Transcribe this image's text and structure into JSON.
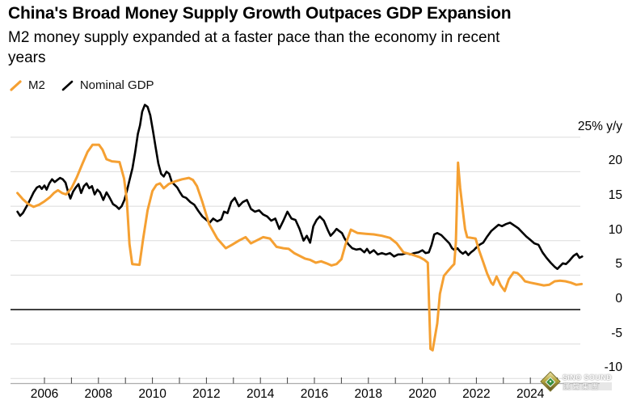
{
  "chart_data": {
    "type": "line",
    "title": "China's Broad Money Supply Growth Outpaces GDP Expansion",
    "subtitle": "M2 money supply expanded at a faster pace than the economy in recent years",
    "legend_position": "top-left",
    "grid": true,
    "x_axis": {
      "range": [
        2005.0,
        2026.3
      ],
      "tick_years": [
        2006,
        2007,
        2008,
        2009,
        2010,
        2011,
        2012,
        2013,
        2014,
        2015,
        2016,
        2017,
        2018,
        2019,
        2020,
        2021,
        2022,
        2023,
        2024,
        2025
      ],
      "label_years": [
        "2006",
        "2008",
        "2010",
        "2012",
        "2014",
        "2016",
        "2018",
        "2020",
        "2022",
        "2024"
      ]
    },
    "y_axis": {
      "unit": "% y/y",
      "range": [
        -10,
        30
      ],
      "ticks": [
        {
          "v": 25,
          "label": "25% y/y"
        },
        {
          "v": 20,
          "label": "20"
        },
        {
          "v": 15,
          "label": "15"
        },
        {
          "v": 10,
          "label": "10"
        },
        {
          "v": 5,
          "label": "5"
        },
        {
          "v": 0,
          "label": "0"
        },
        {
          "v": -5,
          "label": "-5"
        },
        {
          "v": -10,
          "label": "-10"
        }
      ]
    },
    "series": [
      {
        "name": "M2",
        "color": "#F5A032",
        "points": [
          [
            2005.0,
            16.9
          ],
          [
            2005.2,
            16.0
          ],
          [
            2005.4,
            15.3
          ],
          [
            2005.6,
            14.9
          ],
          [
            2005.8,
            15.2
          ],
          [
            2006.0,
            15.7
          ],
          [
            2006.2,
            16.3
          ],
          [
            2006.35,
            16.9
          ],
          [
            2006.5,
            17.3
          ],
          [
            2006.65,
            16.9
          ],
          [
            2006.8,
            16.7
          ],
          [
            2007.0,
            17.6
          ],
          [
            2007.2,
            19.2
          ],
          [
            2007.4,
            21.1
          ],
          [
            2007.6,
            22.9
          ],
          [
            2007.78,
            23.9
          ],
          [
            2008.02,
            23.9
          ],
          [
            2008.15,
            23.2
          ],
          [
            2008.3,
            21.8
          ],
          [
            2008.5,
            21.5
          ],
          [
            2008.78,
            21.4
          ],
          [
            2008.95,
            19.0
          ],
          [
            2009.05,
            15.9
          ],
          [
            2009.15,
            9.5
          ],
          [
            2009.25,
            6.6
          ],
          [
            2009.52,
            6.5
          ],
          [
            2009.65,
            10.1
          ],
          [
            2009.82,
            14.4
          ],
          [
            2010.0,
            17.2
          ],
          [
            2010.15,
            18.1
          ],
          [
            2010.28,
            18.3
          ],
          [
            2010.42,
            17.6
          ],
          [
            2010.6,
            18.2
          ],
          [
            2010.85,
            18.6
          ],
          [
            2011.1,
            18.9
          ],
          [
            2011.35,
            19.1
          ],
          [
            2011.5,
            18.8
          ],
          [
            2011.65,
            17.9
          ],
          [
            2011.85,
            15.6
          ],
          [
            2012.1,
            12.4
          ],
          [
            2012.4,
            10.3
          ],
          [
            2012.72,
            8.9
          ],
          [
            2012.95,
            9.4
          ],
          [
            2013.2,
            10.0
          ],
          [
            2013.45,
            10.5
          ],
          [
            2013.65,
            9.6
          ],
          [
            2013.9,
            10.1
          ],
          [
            2014.1,
            10.5
          ],
          [
            2014.35,
            10.3
          ],
          [
            2014.6,
            9.1
          ],
          [
            2014.85,
            8.9
          ],
          [
            2015.05,
            8.8
          ],
          [
            2015.25,
            8.2
          ],
          [
            2015.45,
            7.8
          ],
          [
            2015.65,
            7.4
          ],
          [
            2015.85,
            7.2
          ],
          [
            2016.05,
            6.8
          ],
          [
            2016.25,
            7.0
          ],
          [
            2016.45,
            6.7
          ],
          [
            2016.63,
            6.4
          ],
          [
            2016.82,
            6.6
          ],
          [
            2017.0,
            7.3
          ],
          [
            2017.15,
            9.4
          ],
          [
            2017.35,
            11.6
          ],
          [
            2017.6,
            11.1
          ],
          [
            2017.9,
            11.0
          ],
          [
            2018.2,
            10.9
          ],
          [
            2018.5,
            10.7
          ],
          [
            2018.8,
            10.4
          ],
          [
            2019.05,
            9.6
          ],
          [
            2019.3,
            8.3
          ],
          [
            2019.6,
            8.0
          ],
          [
            2019.9,
            7.6
          ],
          [
            2020.08,
            7.2
          ],
          [
            2020.2,
            6.8
          ],
          [
            2020.3,
            -5.7
          ],
          [
            2020.38,
            -5.9
          ],
          [
            2020.55,
            -2.0
          ],
          [
            2020.65,
            2.3
          ],
          [
            2020.8,
            4.9
          ],
          [
            2020.95,
            5.6
          ],
          [
            2021.08,
            6.2
          ],
          [
            2021.18,
            6.6
          ],
          [
            2021.24,
            9.7
          ],
          [
            2021.32,
            21.3
          ],
          [
            2021.4,
            17.6
          ],
          [
            2021.46,
            15.6
          ],
          [
            2021.52,
            13.6
          ],
          [
            2021.58,
            11.7
          ],
          [
            2021.66,
            10.5
          ],
          [
            2021.82,
            10.4
          ],
          [
            2021.97,
            10.3
          ],
          [
            2022.1,
            8.6
          ],
          [
            2022.25,
            6.9
          ],
          [
            2022.4,
            5.2
          ],
          [
            2022.55,
            3.9
          ],
          [
            2022.62,
            3.6
          ],
          [
            2022.75,
            4.8
          ],
          [
            2022.9,
            3.5
          ],
          [
            2023.05,
            2.7
          ],
          [
            2023.2,
            4.4
          ],
          [
            2023.38,
            5.4
          ],
          [
            2023.52,
            5.3
          ],
          [
            2023.66,
            4.8
          ],
          [
            2023.8,
            4.1
          ],
          [
            2024.0,
            3.9
          ],
          [
            2024.25,
            3.7
          ],
          [
            2024.5,
            3.5
          ],
          [
            2024.7,
            3.6
          ],
          [
            2024.9,
            4.1
          ],
          [
            2025.1,
            4.2
          ],
          [
            2025.3,
            4.1
          ],
          [
            2025.5,
            3.9
          ],
          [
            2025.7,
            3.6
          ],
          [
            2025.9,
            3.7
          ]
        ]
      },
      {
        "name": "Nominal GDP",
        "color": "#000000",
        "points": [
          [
            2005.0,
            14.2
          ],
          [
            2005.1,
            13.6
          ],
          [
            2005.2,
            14.0
          ],
          [
            2005.3,
            14.7
          ],
          [
            2005.4,
            15.4
          ],
          [
            2005.5,
            16.2
          ],
          [
            2005.6,
            17.0
          ],
          [
            2005.72,
            17.7
          ],
          [
            2005.82,
            17.9
          ],
          [
            2005.9,
            17.5
          ],
          [
            2006.0,
            18.0
          ],
          [
            2006.08,
            17.4
          ],
          [
            2006.18,
            18.3
          ],
          [
            2006.28,
            18.9
          ],
          [
            2006.38,
            18.5
          ],
          [
            2006.48,
            18.8
          ],
          [
            2006.58,
            19.1
          ],
          [
            2006.68,
            18.9
          ],
          [
            2006.78,
            18.4
          ],
          [
            2006.88,
            17.0
          ],
          [
            2006.96,
            16.1
          ],
          [
            2007.06,
            17.1
          ],
          [
            2007.16,
            17.7
          ],
          [
            2007.26,
            18.2
          ],
          [
            2007.36,
            16.9
          ],
          [
            2007.46,
            17.9
          ],
          [
            2007.56,
            18.3
          ],
          [
            2007.66,
            17.6
          ],
          [
            2007.76,
            17.9
          ],
          [
            2007.86,
            16.7
          ],
          [
            2007.96,
            17.4
          ],
          [
            2008.06,
            17.0
          ],
          [
            2008.18,
            15.9
          ],
          [
            2008.3,
            17.0
          ],
          [
            2008.42,
            16.2
          ],
          [
            2008.54,
            15.3
          ],
          [
            2008.66,
            15.0
          ],
          [
            2008.76,
            14.6
          ],
          [
            2008.86,
            15.0
          ],
          [
            2008.96,
            15.9
          ],
          [
            2009.06,
            17.3
          ],
          [
            2009.16,
            18.9
          ],
          [
            2009.26,
            20.5
          ],
          [
            2009.36,
            22.8
          ],
          [
            2009.46,
            25.5
          ],
          [
            2009.54,
            26.7
          ],
          [
            2009.62,
            28.7
          ],
          [
            2009.72,
            29.7
          ],
          [
            2009.82,
            29.4
          ],
          [
            2009.92,
            28.2
          ],
          [
            2010.02,
            25.9
          ],
          [
            2010.12,
            23.5
          ],
          [
            2010.22,
            21.2
          ],
          [
            2010.32,
            19.7
          ],
          [
            2010.42,
            19.3
          ],
          [
            2010.52,
            20.0
          ],
          [
            2010.62,
            19.7
          ],
          [
            2010.72,
            18.5
          ],
          [
            2010.82,
            18.1
          ],
          [
            2010.92,
            17.7
          ],
          [
            2011.02,
            17.0
          ],
          [
            2011.12,
            16.4
          ],
          [
            2011.25,
            16.2
          ],
          [
            2011.4,
            15.6
          ],
          [
            2011.55,
            15.2
          ],
          [
            2011.7,
            14.3
          ],
          [
            2011.85,
            13.5
          ],
          [
            2012.0,
            13.0
          ],
          [
            2012.12,
            12.6
          ],
          [
            2012.25,
            13.2
          ],
          [
            2012.4,
            12.8
          ],
          [
            2012.55,
            13.1
          ],
          [
            2012.65,
            14.2
          ],
          [
            2012.78,
            14.0
          ],
          [
            2012.92,
            15.6
          ],
          [
            2013.05,
            16.2
          ],
          [
            2013.2,
            15.0
          ],
          [
            2013.35,
            15.6
          ],
          [
            2013.5,
            15.9
          ],
          [
            2013.65,
            14.6
          ],
          [
            2013.8,
            14.2
          ],
          [
            2013.95,
            14.4
          ],
          [
            2014.1,
            13.8
          ],
          [
            2014.25,
            13.5
          ],
          [
            2014.4,
            12.9
          ],
          [
            2014.55,
            13.2
          ],
          [
            2014.7,
            11.7
          ],
          [
            2014.85,
            12.9
          ],
          [
            2015.0,
            14.2
          ],
          [
            2015.15,
            13.2
          ],
          [
            2015.3,
            13.0
          ],
          [
            2015.45,
            11.7
          ],
          [
            2015.6,
            10.0
          ],
          [
            2015.72,
            10.7
          ],
          [
            2015.84,
            9.7
          ],
          [
            2015.96,
            12.1
          ],
          [
            2016.08,
            13.0
          ],
          [
            2016.2,
            13.5
          ],
          [
            2016.35,
            12.9
          ],
          [
            2016.5,
            11.5
          ],
          [
            2016.6,
            10.7
          ],
          [
            2016.72,
            11.2
          ],
          [
            2016.82,
            11.7
          ],
          [
            2016.92,
            11.4
          ],
          [
            2017.02,
            11.1
          ],
          [
            2017.12,
            10.3
          ],
          [
            2017.25,
            9.5
          ],
          [
            2017.4,
            8.9
          ],
          [
            2017.55,
            8.7
          ],
          [
            2017.7,
            8.8
          ],
          [
            2017.85,
            8.3
          ],
          [
            2017.95,
            8.8
          ],
          [
            2018.05,
            8.2
          ],
          [
            2018.2,
            8.6
          ],
          [
            2018.35,
            8.0
          ],
          [
            2018.5,
            8.2
          ],
          [
            2018.65,
            8.0
          ],
          [
            2018.8,
            8.2
          ],
          [
            2018.95,
            7.7
          ],
          [
            2019.1,
            8.0
          ],
          [
            2019.25,
            8.0
          ],
          [
            2019.4,
            8.2
          ],
          [
            2019.55,
            8.0
          ],
          [
            2019.7,
            8.2
          ],
          [
            2019.85,
            8.3
          ],
          [
            2020.0,
            8.6
          ],
          [
            2020.12,
            8.2
          ],
          [
            2020.24,
            8.3
          ],
          [
            2020.34,
            9.4
          ],
          [
            2020.44,
            10.9
          ],
          [
            2020.55,
            11.1
          ],
          [
            2020.7,
            10.8
          ],
          [
            2020.85,
            10.2
          ],
          [
            2021.0,
            9.6
          ],
          [
            2021.1,
            8.9
          ],
          [
            2021.2,
            8.6
          ],
          [
            2021.3,
            8.9
          ],
          [
            2021.4,
            8.4
          ],
          [
            2021.5,
            8.1
          ],
          [
            2021.6,
            8.4
          ],
          [
            2021.7,
            7.9
          ],
          [
            2021.8,
            8.3
          ],
          [
            2021.9,
            8.6
          ],
          [
            2022.0,
            9.0
          ],
          [
            2022.12,
            9.4
          ],
          [
            2022.25,
            9.7
          ],
          [
            2022.4,
            10.6
          ],
          [
            2022.55,
            11.4
          ],
          [
            2022.7,
            11.9
          ],
          [
            2022.82,
            12.3
          ],
          [
            2022.95,
            12.1
          ],
          [
            2023.1,
            12.4
          ],
          [
            2023.25,
            12.6
          ],
          [
            2023.4,
            12.2
          ],
          [
            2023.55,
            11.8
          ],
          [
            2023.7,
            11.2
          ],
          [
            2023.85,
            10.6
          ],
          [
            2024.0,
            10.1
          ],
          [
            2024.15,
            9.6
          ],
          [
            2024.3,
            9.4
          ],
          [
            2024.45,
            8.3
          ],
          [
            2024.6,
            7.5
          ],
          [
            2024.75,
            6.8
          ],
          [
            2024.9,
            6.2
          ],
          [
            2025.0,
            5.9
          ],
          [
            2025.1,
            6.3
          ],
          [
            2025.2,
            6.7
          ],
          [
            2025.32,
            6.6
          ],
          [
            2025.45,
            7.1
          ],
          [
            2025.6,
            7.8
          ],
          [
            2025.72,
            8.1
          ],
          [
            2025.82,
            7.5
          ],
          [
            2025.92,
            7.7
          ]
        ]
      }
    ]
  },
  "watermark": {
    "line1": "SiNO SOUND",
    "line2": "漢聲集團"
  }
}
